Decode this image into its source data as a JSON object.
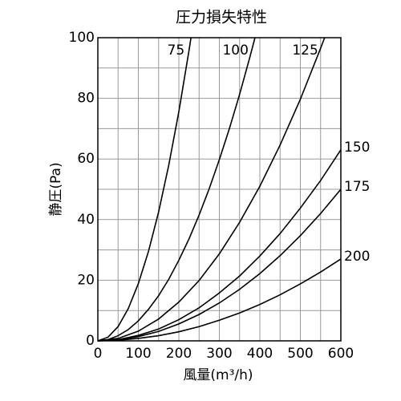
{
  "chart_data": {
    "type": "line",
    "title": "圧力損失特性",
    "x_label": "風量(m³/h)",
    "y_label": "静圧(Pa)",
    "xlim": [
      0,
      600
    ],
    "ylim": [
      0,
      100
    ],
    "xticks": [
      0,
      100,
      200,
      300,
      400,
      500,
      600
    ],
    "yticks": [
      0,
      20,
      40,
      60,
      80,
      100
    ],
    "xminor": [
      50,
      150,
      250,
      350,
      450,
      550
    ],
    "yminor": [
      10,
      30,
      50,
      70,
      90
    ],
    "grid": true,
    "series": [
      {
        "name": "75",
        "color": "#000000",
        "x": [
          0,
          25,
          50,
          75,
          100,
          125,
          150,
          175,
          200,
          225,
          230
        ],
        "values": [
          0,
          1.2,
          4.7,
          10.6,
          18.9,
          29.5,
          42.5,
          57.9,
          75.6,
          95.7,
          100
        ]
      },
      {
        "name": "100",
        "color": "#000000",
        "x": [
          0,
          25,
          50,
          75,
          100,
          125,
          150,
          175,
          200,
          225,
          250,
          275,
          300,
          325,
          350,
          375,
          388
        ],
        "values": [
          0,
          0.4,
          1.7,
          3.7,
          6.6,
          10.4,
          14.9,
          20.3,
          26.6,
          33.6,
          41.5,
          50.2,
          59.8,
          70.1,
          81.3,
          93.4,
          100
        ]
      },
      {
        "name": "125",
        "color": "#000000",
        "x": [
          0,
          50,
          100,
          150,
          200,
          250,
          300,
          350,
          400,
          450,
          500,
          550,
          560
        ],
        "values": [
          0,
          0.8,
          3.2,
          7.2,
          12.8,
          19.9,
          28.7,
          39.1,
          51.0,
          64.6,
          79.7,
          96.5,
          100
        ]
      },
      {
        "name": "150",
        "color": "#000000",
        "x": [
          0,
          50,
          100,
          150,
          200,
          250,
          300,
          350,
          400,
          450,
          500,
          550,
          600
        ],
        "values": [
          0,
          0.4,
          1.8,
          3.9,
          7.0,
          10.9,
          15.8,
          21.4,
          28.0,
          35.4,
          43.8,
          52.9,
          63
        ]
      },
      {
        "name": "175",
        "color": "#000000",
        "x": [
          0,
          50,
          100,
          150,
          200,
          250,
          300,
          350,
          400,
          450,
          500,
          550,
          600
        ],
        "values": [
          0,
          0.3,
          1.4,
          3.1,
          5.6,
          8.7,
          12.5,
          17.0,
          22.2,
          28.1,
          34.7,
          42.0,
          50
        ]
      },
      {
        "name": "200",
        "color": "#000000",
        "x": [
          0,
          50,
          100,
          150,
          200,
          250,
          300,
          350,
          400,
          450,
          500,
          550,
          600
        ],
        "values": [
          0,
          0.2,
          0.8,
          1.7,
          3.0,
          4.7,
          6.8,
          9.2,
          12.0,
          15.2,
          18.8,
          22.7,
          27
        ]
      }
    ]
  }
}
